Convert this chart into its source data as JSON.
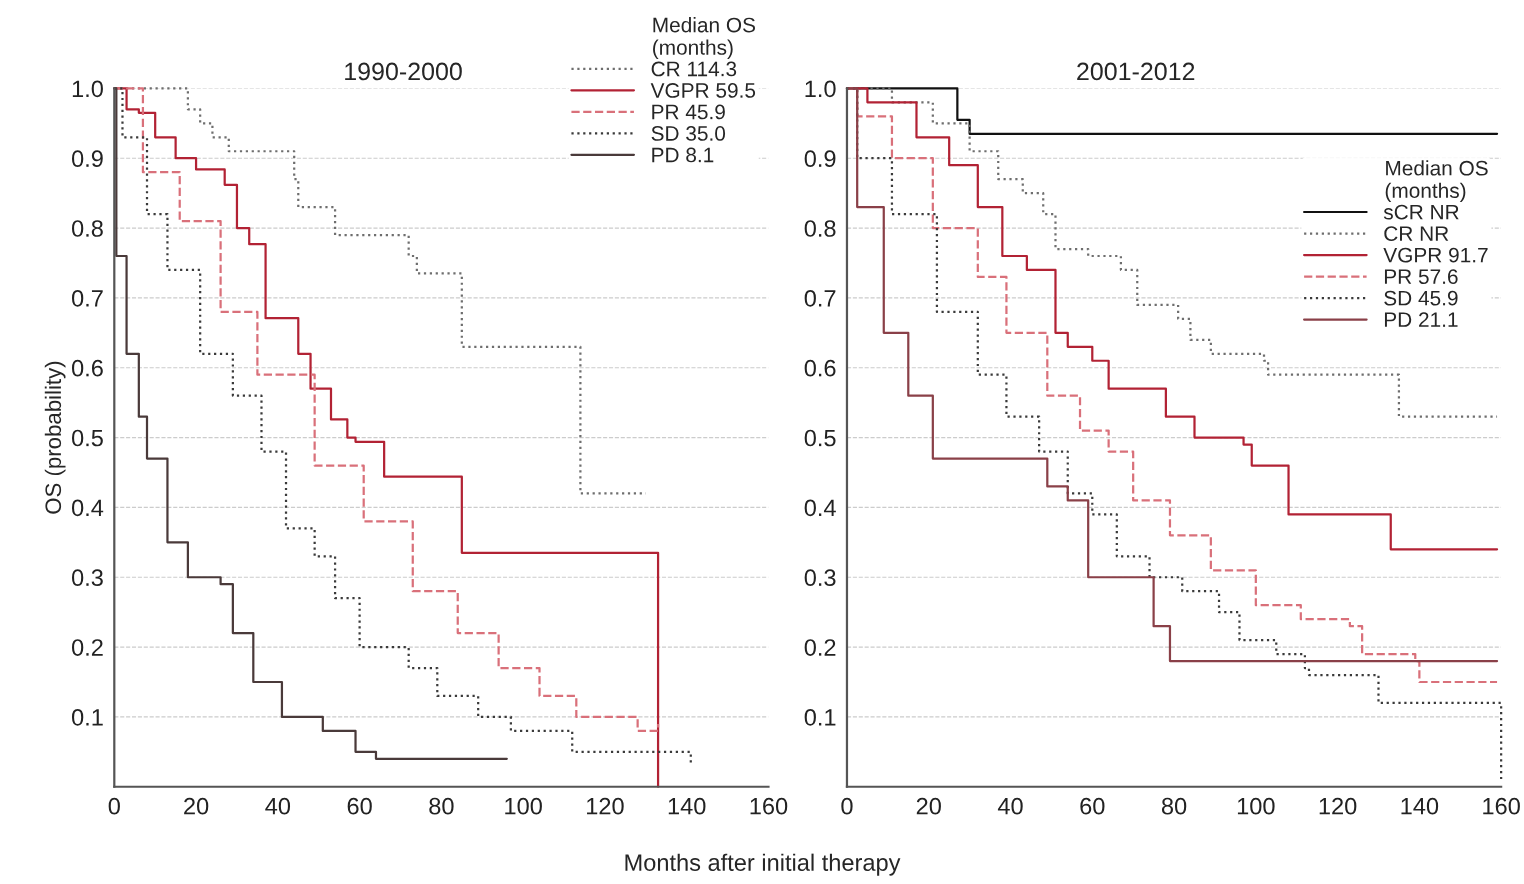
{
  "chart_data": [
    {
      "type": "step",
      "title": "1990-2000",
      "xlabel": "Months after initial therapy",
      "ylabel": "OS (probability)",
      "legend_title": "Median OS\n(months)",
      "legend": "top right",
      "grid": "y",
      "xlim": [
        0,
        160
      ],
      "xticks": [
        0,
        20,
        40,
        60,
        80,
        100,
        120,
        140,
        160
      ],
      "ylim": [
        0,
        1.0
      ],
      "yticks": [
        0.1,
        0.2,
        0.3,
        0.4,
        0.5,
        0.6,
        0.7,
        0.8,
        0.9,
        {
          "value": 1.0,
          "label": "1.0"
        }
      ],
      "series": [
        {
          "name": "CR 114.3",
          "color": "#6e6e6e",
          "line_style": "dotted",
          "x": [
            0,
            18,
            21,
            24,
            28,
            44,
            45,
            54,
            72,
            74,
            85,
            114,
            130
          ],
          "values": [
            1.0,
            0.97,
            0.95,
            0.93,
            0.91,
            0.87,
            0.83,
            0.79,
            0.76,
            0.735,
            0.63,
            0.42,
            0.42
          ]
        },
        {
          "name": "VGPR 59.5",
          "color": "#b22234",
          "line_style": "solid",
          "x": [
            0,
            3,
            6,
            10,
            15,
            20,
            27,
            30,
            33,
            37,
            45,
            48,
            53,
            57,
            59,
            66,
            85,
            133,
            133
          ],
          "values": [
            1.0,
            0.97,
            0.965,
            0.93,
            0.9,
            0.884,
            0.862,
            0.8,
            0.777,
            0.671,
            0.62,
            0.57,
            0.526,
            0.5,
            0.494,
            0.444,
            0.335,
            0.0,
            0.0
          ]
        },
        {
          "name": "PR 45.9",
          "color": "#d9707a",
          "line_style": "dashed",
          "x": [
            0,
            7,
            16,
            26,
            35,
            49,
            61,
            73,
            84,
            94,
            104,
            113,
            126,
            128,
            133
          ],
          "values": [
            1.0,
            0.88,
            0.81,
            0.68,
            0.59,
            0.46,
            0.38,
            0.28,
            0.22,
            0.17,
            0.13,
            0.1,
            0.1,
            0.08,
            0.09
          ]
        },
        {
          "name": "SD 35.0",
          "color": "#3a3a3a",
          "line_style": "dotted",
          "x": [
            0,
            2,
            8,
            13,
            21,
            29,
            36,
            42,
            49,
            54,
            60,
            72,
            79,
            89,
            97,
            112,
            135,
            141
          ],
          "values": [
            1.0,
            0.93,
            0.82,
            0.74,
            0.62,
            0.56,
            0.48,
            0.37,
            0.33,
            0.27,
            0.2,
            0.17,
            0.13,
            0.1,
            0.08,
            0.05,
            0.05,
            0.03
          ]
        },
        {
          "name": "PD 8.1",
          "color": "#4a3a3a",
          "line_style": "solid",
          "x": [
            0,
            0.5,
            3,
            6,
            8,
            13,
            18,
            26,
            29,
            34,
            41,
            51,
            59,
            64,
            96
          ],
          "values": [
            1.0,
            0.76,
            0.62,
            0.53,
            0.47,
            0.35,
            0.3,
            0.29,
            0.22,
            0.15,
            0.1,
            0.08,
            0.05,
            0.04,
            0.04
          ]
        }
      ]
    },
    {
      "type": "step",
      "title": "2001-2012",
      "legend_title": "Median OS\n(months)",
      "legend": "top right",
      "grid": "y",
      "xlim": [
        0,
        160
      ],
      "xticks": [
        0,
        20,
        40,
        60,
        80,
        100,
        120,
        140,
        160
      ],
      "ylim": [
        0,
        1.0
      ],
      "yticks": [
        0.1,
        0.2,
        0.3,
        0.4,
        0.5,
        0.6,
        0.7,
        0.8,
        0.9,
        {
          "value": 1.0,
          "label": "1.0"
        }
      ],
      "series": [
        {
          "name": "sCR NR",
          "color": "#111111",
          "line_style": "solid",
          "x": [
            0,
            21,
            27,
            30,
            159
          ],
          "values": [
            1.0,
            1.0,
            0.955,
            0.935,
            0.935
          ]
        },
        {
          "name": "CR NR",
          "color": "#6e6e6e",
          "line_style": "dotted",
          "x": [
            0,
            11,
            21,
            30,
            37,
            43,
            48,
            51,
            59,
            67,
            71,
            81,
            84,
            89,
            102,
            103,
            134,
            135,
            159
          ],
          "values": [
            1.0,
            0.98,
            0.95,
            0.91,
            0.87,
            0.85,
            0.82,
            0.77,
            0.76,
            0.74,
            0.69,
            0.67,
            0.64,
            0.62,
            0.61,
            0.59,
            0.59,
            0.53,
            0.53
          ]
        },
        {
          "name": "VGPR 91.7",
          "color": "#b22234",
          "line_style": "solid",
          "x": [
            0,
            5,
            17,
            25,
            32,
            38,
            44,
            51,
            54,
            60,
            64,
            74,
            78,
            85,
            97,
            99,
            107,
            108,
            131,
            133,
            159
          ],
          "values": [
            1.0,
            0.98,
            0.93,
            0.89,
            0.83,
            0.76,
            0.74,
            0.65,
            0.63,
            0.61,
            0.57,
            0.57,
            0.53,
            0.5,
            0.49,
            0.46,
            0.46,
            0.39,
            0.39,
            0.34,
            0.34
          ]
        },
        {
          "name": "PR 57.6",
          "color": "#d9707a",
          "line_style": "dashed",
          "x": [
            0,
            2.5,
            11,
            21,
            32,
            39,
            49,
            57,
            64,
            70,
            79,
            89,
            100,
            111,
            123,
            126,
            139,
            140,
            159
          ],
          "values": [
            1.0,
            0.96,
            0.9,
            0.8,
            0.73,
            0.65,
            0.56,
            0.51,
            0.48,
            0.41,
            0.36,
            0.31,
            0.26,
            0.24,
            0.23,
            0.19,
            0.18,
            0.15,
            0.15
          ]
        },
        {
          "name": "SD 45.9",
          "color": "#3a3a3a",
          "line_style": "dotted",
          "x": [
            0,
            2.5,
            11,
            22,
            32,
            39,
            47,
            54,
            60,
            66,
            74,
            82,
            91,
            96,
            105,
            112,
            113,
            129,
            130,
            159,
            160
          ],
          "values": [
            1.0,
            0.9,
            0.82,
            0.68,
            0.59,
            0.53,
            0.48,
            0.42,
            0.39,
            0.33,
            0.3,
            0.28,
            0.25,
            0.21,
            0.19,
            0.17,
            0.16,
            0.16,
            0.12,
            0.12,
            0.01
          ]
        },
        {
          "name": "PD 21.1",
          "color": "#8a4048",
          "line_style": "solid",
          "x": [
            0,
            2.5,
            9,
            15,
            21,
            44,
            49,
            54,
            59,
            73,
            75,
            79,
            159
          ],
          "values": [
            1.0,
            0.83,
            0.65,
            0.56,
            0.47,
            0.47,
            0.43,
            0.41,
            0.3,
            0.3,
            0.23,
            0.18,
            0.18
          ]
        }
      ]
    }
  ]
}
